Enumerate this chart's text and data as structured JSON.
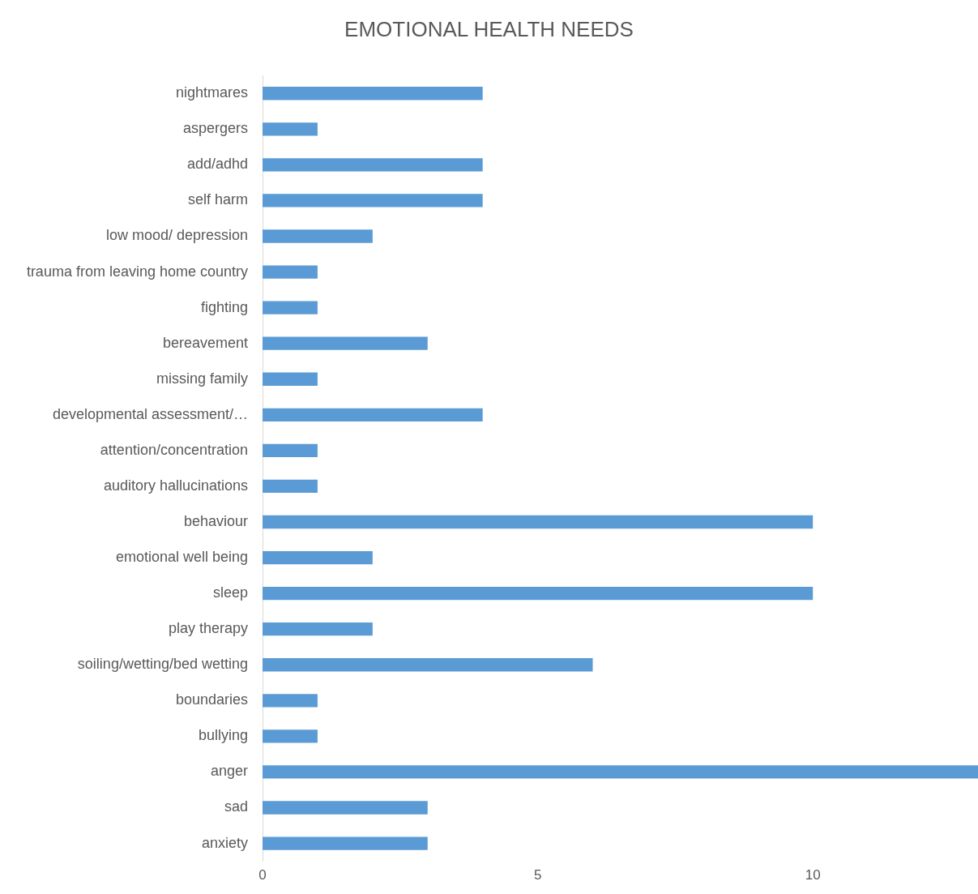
{
  "chart_data": {
    "type": "bar",
    "orientation": "horizontal",
    "title": "EMOTIONAL HEALTH NEEDS",
    "categories": [
      "nightmares",
      "aspergers",
      "add/adhd",
      "self harm",
      "low mood/ depression",
      "trauma from leaving home country",
      "fighting",
      "bereavement",
      "missing family",
      "developmental assessment/…",
      "attention/concentration",
      "auditory hallucinations",
      "behaviour",
      "emotional well being",
      "sleep",
      "play therapy",
      "soiling/wetting/bed wetting",
      "boundaries",
      "bullying",
      "anger",
      "sad",
      "anxiety"
    ],
    "values": [
      4,
      1,
      4,
      4,
      2,
      1,
      1,
      3,
      1,
      4,
      1,
      1,
      10,
      2,
      10,
      2,
      6,
      1,
      1,
      13,
      3,
      3
    ],
    "color": "#5b9bd5",
    "xlim": [
      0,
      13
    ],
    "xticks": [
      0,
      5,
      10
    ],
    "grid": false,
    "legend": false
  }
}
